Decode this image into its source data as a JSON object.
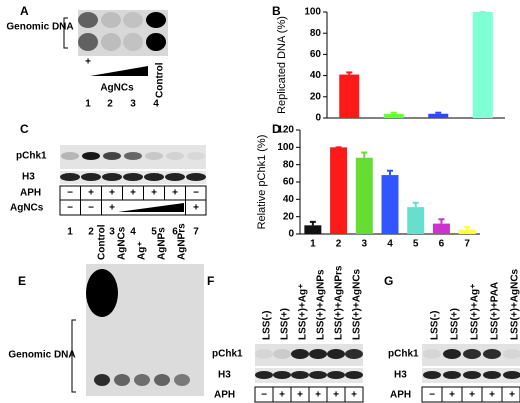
{
  "panels": {
    "A": {
      "panel_label": "A",
      "blot_label": "Genomic DNA",
      "treatment_mark": "+",
      "treatment": "AgNCs",
      "control": "Control",
      "lanes": [
        "1",
        "2",
        "3",
        "4"
      ]
    },
    "C": {
      "panel_label": "C",
      "rows": [
        "pChk1",
        "H3"
      ],
      "aph_label": "APH",
      "aph": [
        "−",
        "+",
        "+",
        "+",
        "+",
        "+",
        "−"
      ],
      "agncs_label": "AgNCs",
      "agncs": [
        "−",
        "−",
        "+",
        null,
        null,
        null,
        "+"
      ],
      "lanes": [
        "1",
        "2",
        "3",
        "4",
        "5",
        "6",
        "7"
      ]
    },
    "E": {
      "panel_label": "E",
      "lanes": [
        "Control",
        "AgNCs",
        "Ag⁺",
        "AgNPs",
        "AgNPrs"
      ],
      "blot_label": "Genomic DNA"
    },
    "F": {
      "panel_label": "F",
      "lanes": [
        "LSS(-)",
        "LSS(+)",
        "LSS(+)+Ag⁺",
        "LSS(+)+AgNPs",
        "LSS(+)+AgNPrs",
        "LSS(+)+AgNCs"
      ],
      "rows": [
        "pChk1",
        "H3"
      ],
      "aph_label": "APH",
      "aph": [
        "−",
        "+",
        "+",
        "+",
        "+",
        "+"
      ]
    },
    "G": {
      "panel_label": "G",
      "lanes": [
        "LSS(-)",
        "LSS(+)",
        "LSS(+)+Ag⁺",
        "LSS(+)+PAA",
        "LSS(+)+AgNCs"
      ],
      "rows": [
        "pChk1",
        "H3"
      ],
      "aph_label": "APH",
      "aph": [
        "−",
        "+",
        "+",
        "+",
        "+"
      ]
    }
  },
  "chart_data": [
    {
      "type": "bar",
      "panel_label": "B",
      "ylabel": "Replicated DNA (%)",
      "categories": [
        null,
        null,
        null,
        null
      ],
      "values": [
        41,
        4,
        4,
        100
      ],
      "errors": [
        2,
        1,
        1,
        0
      ],
      "colors": [
        "#ff1a1a",
        "#66ff33",
        "#3344ff",
        "#7fffd4"
      ],
      "ylim": [
        0,
        100
      ],
      "yticks": [
        0,
        20,
        40,
        60,
        80,
        100
      ]
    },
    {
      "type": "bar",
      "panel_label": "D",
      "ylabel": "Relative pChk1 (%)",
      "categories": [
        "1",
        "2",
        "3",
        "4",
        "5",
        "6",
        "7"
      ],
      "values": [
        10,
        100,
        88,
        68,
        31,
        12,
        5
      ],
      "errors": [
        4,
        0,
        6,
        5,
        5,
        5,
        3
      ],
      "colors": [
        "#111111",
        "#ff1a1a",
        "#66dd33",
        "#3355ff",
        "#66e0cc",
        "#cc33cc",
        "#ffff33"
      ],
      "ylim": [
        0,
        120
      ],
      "yticks": [
        0,
        20,
        40,
        60,
        80,
        100,
        120
      ]
    }
  ]
}
